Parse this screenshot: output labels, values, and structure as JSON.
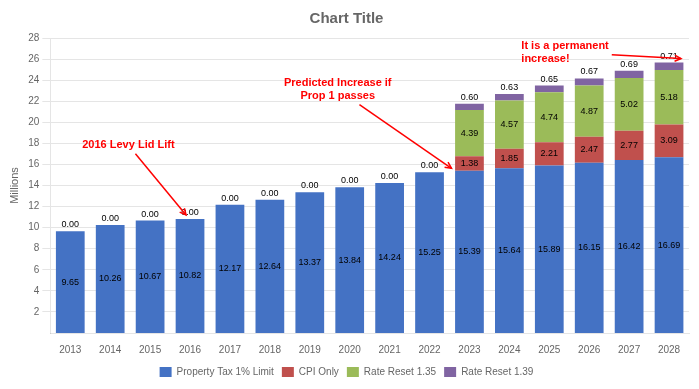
{
  "chart_data": {
    "type": "bar",
    "title": "Chart Title",
    "ylabel": "Millions",
    "categories": [
      "2013",
      "2014",
      "2015",
      "2016",
      "2017",
      "2018",
      "2019",
      "2020",
      "2021",
      "2022",
      "2023",
      "2024",
      "2025",
      "2026",
      "2027",
      "2028"
    ],
    "series": [
      {
        "name": "Property Tax 1% Limit",
        "color": "#4472C4",
        "values": [
          9.65,
          10.26,
          10.67,
          10.82,
          12.17,
          12.64,
          13.37,
          13.84,
          14.24,
          15.25,
          15.39,
          15.64,
          15.89,
          16.15,
          16.42,
          16.69
        ],
        "value_labels": [
          "9.65",
          "10.26",
          "10.67",
          "10.82",
          "12.17",
          "12.64",
          "13.37",
          "13.84",
          "14.24",
          "15.25",
          "15.39",
          "15.64",
          "15.89",
          "16.15",
          "16.42",
          "16.69"
        ]
      },
      {
        "name": "CPI Only",
        "color": "#C0504D",
        "values": [
          0.0,
          0.0,
          0.0,
          0.0,
          0.0,
          0.0,
          0.0,
          0.0,
          0.0,
          0.0,
          1.38,
          1.85,
          2.21,
          2.47,
          2.77,
          3.09
        ],
        "value_labels": [
          null,
          null,
          null,
          null,
          null,
          null,
          null,
          null,
          null,
          null,
          "1.38",
          "1.85",
          "2.21",
          "2.47",
          "2.77",
          "3.09"
        ]
      },
      {
        "name": "Rate Reset 1.35",
        "color": "#9BBB59",
        "values": [
          0.0,
          0.0,
          0.0,
          0.0,
          0.0,
          0.0,
          0.0,
          0.0,
          0.0,
          0.0,
          4.39,
          4.57,
          4.74,
          4.87,
          5.02,
          5.18
        ],
        "value_labels": [
          null,
          null,
          null,
          null,
          null,
          null,
          null,
          null,
          null,
          null,
          "4.39",
          "4.57",
          "4.74",
          "4.87",
          "5.02",
          "5.18"
        ]
      },
      {
        "name": "Rate Reset 1.39",
        "color": "#8064A2",
        "values": [
          0.0,
          0.0,
          0.0,
          0.0,
          0.0,
          0.0,
          0.0,
          0.0,
          0.0,
          0.0,
          0.6,
          0.63,
          0.65,
          0.67,
          0.69,
          0.71
        ],
        "value_labels": [
          "0.00",
          "0.00",
          "0.00",
          "0.00",
          "0.00",
          "0.00",
          "0.00",
          "0.00",
          "0.00",
          "0.00",
          "0.60",
          "0.63",
          "0.65",
          "0.67",
          "0.69",
          "0.71"
        ]
      }
    ],
    "stacked": true,
    "data_labels": true,
    "ylim": [
      0,
      28
    ],
    "yticks": [
      2,
      4,
      6,
      8,
      10,
      12,
      14,
      16,
      18,
      20,
      22,
      24,
      26,
      28
    ],
    "grid": true,
    "legend": "bottom",
    "annotations": [
      {
        "text": "2016 Levy Lid Lift",
        "x": "2016",
        "color": "red"
      },
      {
        "text": "Predicted Increase if\nProp 1 passes",
        "x": "2022",
        "color": "red"
      },
      {
        "text": "It is a permanent\nincrease!",
        "x": "2028",
        "color": "red"
      }
    ]
  }
}
